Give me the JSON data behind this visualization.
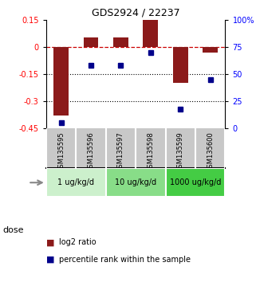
{
  "title": "GDS2924 / 22237",
  "samples": [
    "GSM135595",
    "GSM135596",
    "GSM135597",
    "GSM135598",
    "GSM135599",
    "GSM135600"
  ],
  "log2_ratio": [
    -0.38,
    0.05,
    0.05,
    0.15,
    -0.2,
    -0.03
  ],
  "percentile_rank": [
    5,
    58,
    58,
    70,
    18,
    45
  ],
  "bar_color": "#8B1A1A",
  "dot_color": "#00008B",
  "left_ylim": [
    -0.45,
    0.15
  ],
  "right_ylim": [
    0,
    100
  ],
  "left_yticks": [
    0.15,
    0,
    -0.15,
    -0.3,
    -0.45
  ],
  "right_yticks": [
    100,
    75,
    50,
    25,
    0
  ],
  "hlines_dot": [
    -0.15,
    -0.3
  ],
  "dose_groups": [
    {
      "label": "1 ug/kg/d",
      "start": 0,
      "end": 2,
      "color": "#ccf0cc"
    },
    {
      "label": "10 ug/kg/d",
      "start": 2,
      "end": 4,
      "color": "#88dd88"
    },
    {
      "label": "1000 ug/kg/d",
      "start": 4,
      "end": 6,
      "color": "#44cc44"
    }
  ],
  "legend_bar_label": "log2 ratio",
  "legend_dot_label": "percentile rank within the sample",
  "dose_label": "dose",
  "gsm_bg_color": "#c8c8c8",
  "bar_width": 0.5,
  "fig_width": 3.21,
  "fig_height": 3.54
}
